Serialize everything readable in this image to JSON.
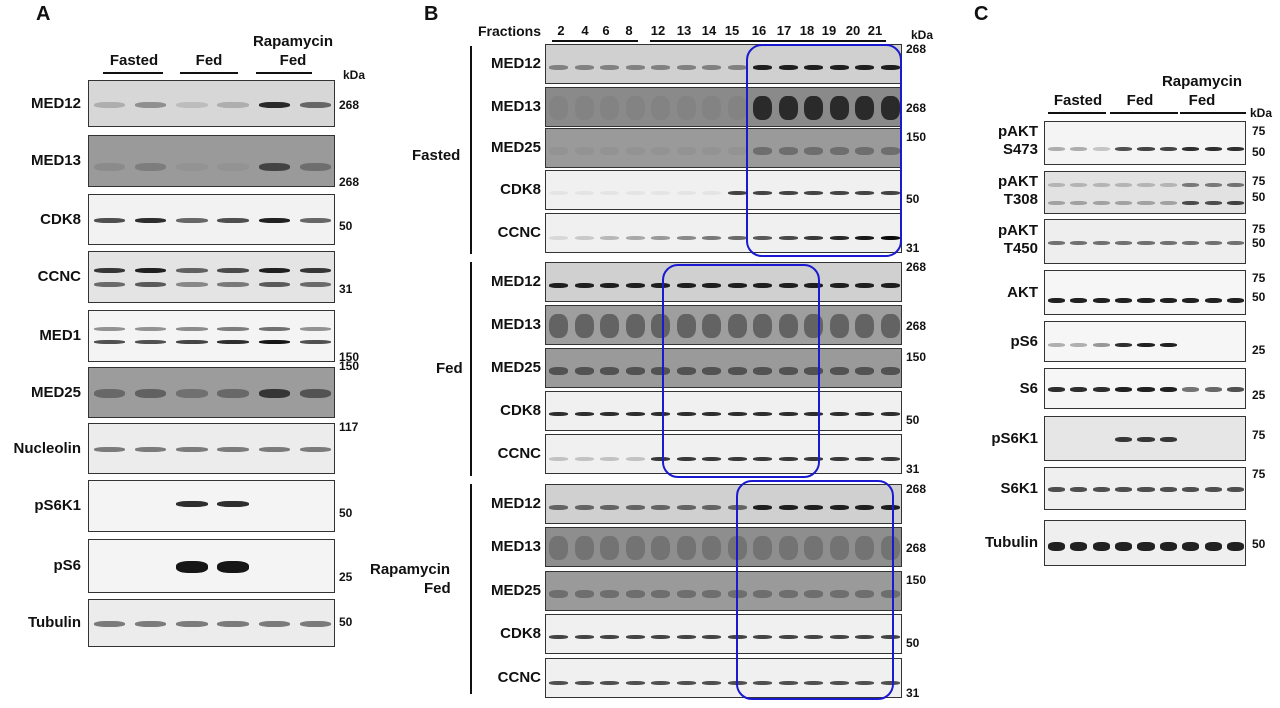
{
  "panelA": {
    "letter": "A",
    "groups": [
      "Fasted",
      "Fed",
      "Rapamycin Fed"
    ],
    "kda": "kDa",
    "blots": [
      {
        "label": "MED12",
        "markers": [
          "268"
        ]
      },
      {
        "label": "MED13",
        "markers": [
          "268"
        ]
      },
      {
        "label": "CDK8",
        "markers": [
          "50"
        ]
      },
      {
        "label": "CCNC",
        "markers": [
          "31"
        ]
      },
      {
        "label": "MED1",
        "markers": [
          "150"
        ]
      },
      {
        "label": "MED25",
        "markers": [
          "150"
        ]
      },
      {
        "label": "Nucleolin",
        "markers": [
          "117"
        ]
      },
      {
        "label": "pS6K1",
        "markers": [
          "50"
        ]
      },
      {
        "label": "pS6",
        "markers": [
          "25"
        ]
      },
      {
        "label": "Tubulin",
        "markers": [
          "50"
        ]
      }
    ]
  },
  "panelB": {
    "letter": "B",
    "fractions_label": "Fractions",
    "fractions": [
      "2",
      "4",
      "6",
      "8",
      "12",
      "13",
      "14",
      "15",
      "16",
      "17",
      "18",
      "19",
      "20",
      "21"
    ],
    "kda": "kDa",
    "conditions": [
      {
        "name": "Fasted",
        "blots": [
          {
            "label": "MED12",
            "marker": "268"
          },
          {
            "label": "MED13",
            "marker": "268"
          },
          {
            "label": "MED25",
            "marker": "150"
          },
          {
            "label": "CDK8",
            "marker": "50"
          },
          {
            "label": "CCNC",
            "marker": "31"
          }
        ]
      },
      {
        "name": "Fed",
        "blots": [
          {
            "label": "MED12",
            "marker": "268"
          },
          {
            "label": "MED13",
            "marker": "268"
          },
          {
            "label": "MED25",
            "marker": "150"
          },
          {
            "label": "CDK8",
            "marker": "50"
          },
          {
            "label": "CCNC",
            "marker": "31"
          }
        ]
      },
      {
        "name": "Rapamycin Fed",
        "name_line1": "Rapamycin",
        "name_line2": "Fed",
        "blots": [
          {
            "label": "MED12",
            "marker": "268"
          },
          {
            "label": "MED13",
            "marker": "268"
          },
          {
            "label": "MED25",
            "marker": "150"
          },
          {
            "label": "CDK8",
            "marker": "50"
          },
          {
            "label": "CCNC",
            "marker": "31"
          }
        ]
      }
    ]
  },
  "panelC": {
    "letter": "C",
    "groups": [
      "Fasted",
      "Fed",
      "Rapamycin Fed"
    ],
    "kda": "kDa",
    "blots": [
      {
        "label": "pAKT S473",
        "line1": "pAKT",
        "line2": "S473",
        "markers": [
          "75",
          "50"
        ]
      },
      {
        "label": "pAKT T308",
        "line1": "pAKT",
        "line2": "T308",
        "markers": [
          "75",
          "50"
        ]
      },
      {
        "label": "pAKT T450",
        "line1": "pAKT",
        "line2": "T450",
        "markers": [
          "75",
          "50"
        ]
      },
      {
        "label": "AKT",
        "markers": [
          "75",
          "50"
        ]
      },
      {
        "label": "pS6",
        "markers": [
          "25"
        ]
      },
      {
        "label": "S6",
        "markers": [
          "25"
        ]
      },
      {
        "label": "pS6K1",
        "markers": [
          "75"
        ]
      },
      {
        "label": "S6K1",
        "markers": [
          "75"
        ]
      },
      {
        "label": "Tubulin",
        "markers": [
          "50"
        ]
      }
    ]
  }
}
